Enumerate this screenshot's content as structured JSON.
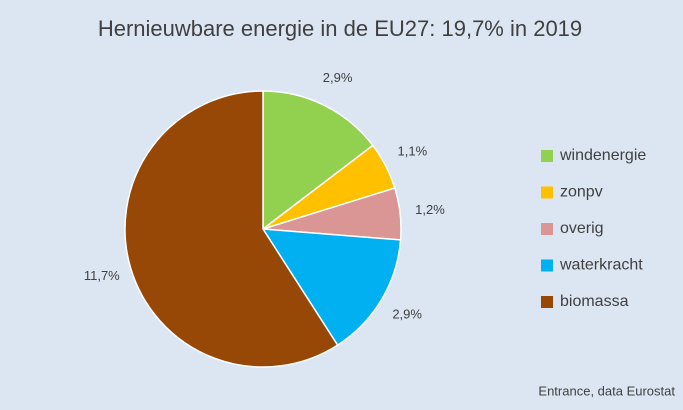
{
  "chart_data": {
    "type": "pie",
    "title": "Hernieuwbare energie in de EU27: 19,7% in 2019",
    "categories": [
      "windenergie",
      "zonpv",
      "overig",
      "waterkracht",
      "biomassa"
    ],
    "values": [
      2.9,
      1.1,
      1.2,
      2.9,
      11.7
    ],
    "value_labels": [
      "2,9%",
      "1,1%",
      "1,2%",
      "2,9%",
      "11,7%"
    ],
    "colors": [
      "#92d050",
      "#ffc000",
      "#da9694",
      "#00b0f0",
      "#974706"
    ],
    "legend": "right",
    "source": "Entrance, data Eurostat"
  }
}
